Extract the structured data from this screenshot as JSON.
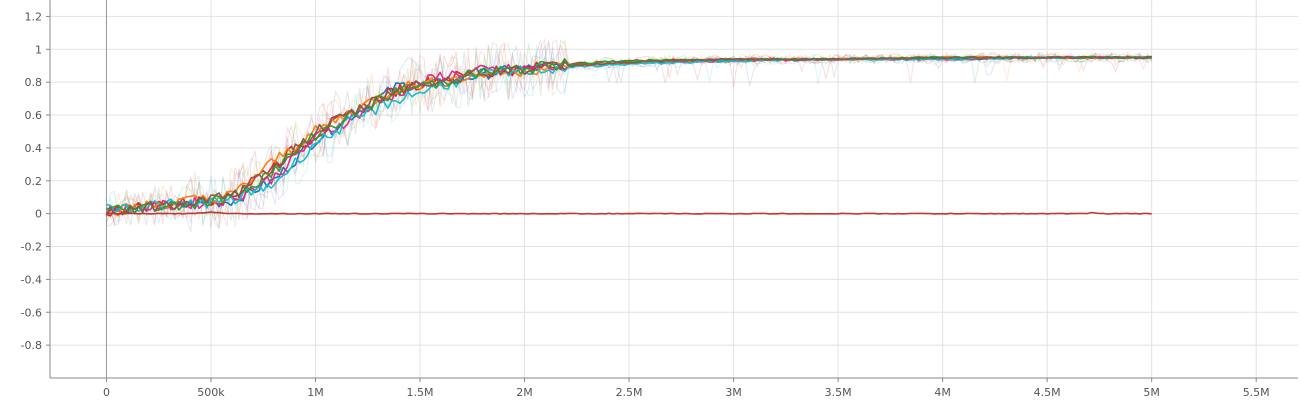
{
  "chart_data": {
    "type": "line",
    "title": "",
    "xlabel": "",
    "ylabel": "",
    "xlim": [
      -270000,
      5700000
    ],
    "ylim": [
      -1.0,
      1.3
    ],
    "grid": true,
    "legend": "none",
    "x_ticks": [
      {
        "value": 0,
        "label": "0"
      },
      {
        "value": 500000,
        "label": "500k"
      },
      {
        "value": 1000000,
        "label": "1M"
      },
      {
        "value": 1500000,
        "label": "1.5M"
      },
      {
        "value": 2000000,
        "label": "2M"
      },
      {
        "value": 2500000,
        "label": "2.5M"
      },
      {
        "value": 3000000,
        "label": "3M"
      },
      {
        "value": 3500000,
        "label": "3.5M"
      },
      {
        "value": 4000000,
        "label": "4M"
      },
      {
        "value": 4500000,
        "label": "4.5M"
      },
      {
        "value": 5000000,
        "label": "5M"
      },
      {
        "value": 5500000,
        "label": "5.5M"
      }
    ],
    "y_ticks": [
      {
        "value": 1.2,
        "label": "1.2"
      },
      {
        "value": 1.0,
        "label": "1"
      },
      {
        "value": 0.8,
        "label": "0.8"
      },
      {
        "value": 0.6,
        "label": "0.6"
      },
      {
        "value": 0.4,
        "label": "0.4"
      },
      {
        "value": 0.2,
        "label": "0.2"
      },
      {
        "value": 0.0,
        "label": "0"
      },
      {
        "value": -0.2,
        "label": "-0.2"
      },
      {
        "value": -0.4,
        "label": "-0.4"
      },
      {
        "value": -0.6,
        "label": "-0.6"
      },
      {
        "value": -0.8,
        "label": "-0.8"
      }
    ],
    "series": [
      {
        "color": "#1f77b4",
        "x": [
          0,
          200000,
          400000,
          600000,
          800000,
          1000000,
          1200000,
          1400000,
          1600000,
          1800000,
          2000000,
          2200000,
          2500000,
          3000000,
          3500000,
          4000000,
          4500000,
          5000000
        ],
        "values": [
          0.02,
          0.04,
          0.05,
          0.08,
          0.2,
          0.45,
          0.62,
          0.78,
          0.79,
          0.85,
          0.88,
          0.9,
          0.92,
          0.93,
          0.94,
          0.94,
          0.95,
          0.95
        ]
      },
      {
        "color": "#d62728",
        "x": [
          0,
          200000,
          400000,
          600000,
          800000,
          1000000,
          1200000,
          1400000,
          1600000,
          1800000,
          2000000,
          2200000,
          2500000,
          3000000,
          3500000,
          4000000,
          4500000,
          5000000
        ],
        "values": [
          0.01,
          0.05,
          0.07,
          0.1,
          0.3,
          0.48,
          0.63,
          0.76,
          0.82,
          0.86,
          0.88,
          0.91,
          0.93,
          0.94,
          0.94,
          0.95,
          0.95,
          0.95
        ]
      },
      {
        "color": "#e7298a",
        "x": [
          0,
          200000,
          400000,
          600000,
          800000,
          1000000,
          1200000,
          1400000,
          1600000,
          1800000,
          2000000,
          2200000,
          2500000,
          3000000,
          3500000,
          4000000,
          4500000,
          5000000
        ],
        "values": [
          0.02,
          0.04,
          0.06,
          0.09,
          0.22,
          0.46,
          0.6,
          0.74,
          0.84,
          0.87,
          0.88,
          0.9,
          0.92,
          0.93,
          0.94,
          0.94,
          0.95,
          0.95
        ]
      },
      {
        "color": "#ff7f0e",
        "x": [
          0,
          200000,
          400000,
          600000,
          800000,
          1000000,
          1200000,
          1400000,
          1600000,
          1800000,
          2000000,
          2200000,
          2500000,
          3000000,
          3500000,
          4000000,
          4500000,
          5000000
        ],
        "values": [
          0.01,
          0.05,
          0.08,
          0.11,
          0.32,
          0.5,
          0.64,
          0.77,
          0.8,
          0.85,
          0.87,
          0.9,
          0.92,
          0.94,
          0.94,
          0.95,
          0.95,
          0.95
        ]
      },
      {
        "color": "#17becf",
        "x": [
          0,
          200000,
          400000,
          600000,
          800000,
          1000000,
          1200000,
          1400000,
          1600000,
          1800000,
          2000000,
          2200000,
          2500000,
          3000000,
          3500000,
          4000000,
          4500000,
          5000000
        ],
        "values": [
          0.03,
          0.05,
          0.06,
          0.08,
          0.18,
          0.43,
          0.58,
          0.7,
          0.78,
          0.84,
          0.87,
          0.89,
          0.91,
          0.93,
          0.94,
          0.94,
          0.95,
          0.95
        ]
      },
      {
        "color": "#2ca02c",
        "x": [
          0,
          200000,
          400000,
          600000,
          800000,
          1000000,
          1200000,
          1400000,
          1600000,
          1800000,
          2000000,
          2200000,
          2500000,
          3000000,
          3500000,
          4000000,
          4500000,
          5000000
        ],
        "values": [
          0.02,
          0.04,
          0.06,
          0.1,
          0.26,
          0.48,
          0.62,
          0.75,
          0.8,
          0.86,
          0.88,
          0.91,
          0.93,
          0.94,
          0.94,
          0.95,
          0.95,
          0.95
        ]
      },
      {
        "color": "#8c564b",
        "x": [
          0,
          200000,
          400000,
          600000,
          800000,
          1000000,
          1200000,
          1400000,
          1600000,
          1800000,
          2000000,
          2200000,
          2500000,
          3000000,
          3500000,
          4000000,
          4500000,
          5000000
        ],
        "values": [
          0.01,
          0.04,
          0.07,
          0.1,
          0.28,
          0.5,
          0.63,
          0.76,
          0.81,
          0.86,
          0.88,
          0.9,
          0.92,
          0.94,
          0.94,
          0.95,
          0.95,
          0.95
        ]
      },
      {
        "color": "#c0392b",
        "x": [
          0,
          400000,
          500000,
          600000,
          1000000,
          2000000,
          3000000,
          4000000,
          4690000,
          4700000,
          4750000,
          5000000
        ],
        "values": [
          0.0,
          0.0,
          0.01,
          0.0,
          0.0,
          0.0,
          0.0,
          0.0,
          0.0,
          0.01,
          0.0,
          0.0
        ]
      }
    ]
  }
}
